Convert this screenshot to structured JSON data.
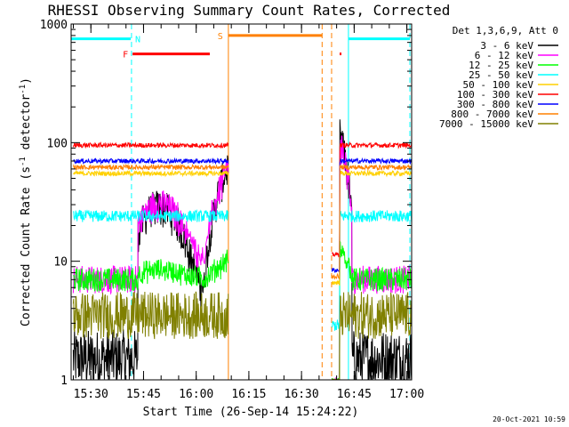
{
  "chart_data": {
    "type": "line",
    "title": "RHESSI Observing Summary Count Rates, Corrected",
    "xlabel": "Start Time (26-Sep-14 15:24:22)",
    "ylabel": "Corrected Count Rate (s",
    "ylabel_sup": "-1",
    "ylabel_tail": " detector",
    "ylabel_end": ")",
    "y_scale": "log",
    "ylim": [
      1,
      1000
    ],
    "xlim_minutes": [
      0,
      97
    ],
    "x_start": "15:24:22",
    "x_ticks": [
      {
        "label": "15:30",
        "min": 5.63
      },
      {
        "label": "15:45",
        "min": 20.63
      },
      {
        "label": "16:00",
        "min": 35.63
      },
      {
        "label": "16:15",
        "min": 50.63
      },
      {
        "label": "16:30",
        "min": 65.63
      },
      {
        "label": "16:45",
        "min": 80.63
      },
      {
        "label": "17:00",
        "min": 95.63
      }
    ],
    "y_tick_labels": [
      {
        "label": "1",
        "value": 1
      },
      {
        "label": "10",
        "value": 10
      },
      {
        "label": "100",
        "value": 100
      },
      {
        "label": "1000",
        "value": 1000
      }
    ],
    "legend_title": "Det 1,3,6,9, Att 0",
    "legend_placement": "right-outside",
    "series": [
      {
        "name": "3 - 6 keV",
        "color": "#000000",
        "level": 1.5,
        "noise": 0.25,
        "flare": 130
      },
      {
        "name": "6 - 12 keV",
        "color": "#ff00ff",
        "level": 7,
        "noise": 0.12,
        "flare": 110
      },
      {
        "name": "12 - 25 keV",
        "color": "#00ff00",
        "level": 7,
        "noise": 0.1,
        "flare": 12
      },
      {
        "name": "25 - 50 keV",
        "color": "#00ffff",
        "level": 24,
        "noise": 0.05,
        "flare": 0
      },
      {
        "name": "50 - 100 keV",
        "color": "#ffd000",
        "level": 55,
        "noise": 0.02,
        "flare": 0
      },
      {
        "name": "100 - 300 keV",
        "color": "#ff0000",
        "level": 95,
        "noise": 0.02,
        "flare": 0
      },
      {
        "name": "300 - 800 keV",
        "color": "#0000ff",
        "level": 70,
        "noise": 0.02,
        "flare": 0
      },
      {
        "name": "800 - 7000 keV",
        "color": "#ff8000",
        "level": 62,
        "noise": 0.02,
        "flare": 0
      },
      {
        "name": "7000 - 15000 keV",
        "color": "#808000",
        "level": 3.5,
        "noise": 0.2,
        "flare": 0
      }
    ],
    "gaps_minutes": [
      [
        0,
        0.5
      ],
      [
        44.8,
        74.2
      ]
    ],
    "att_drop_minutes": [
      [
        74.2,
        76.5
      ]
    ],
    "flags": [
      {
        "label": "N",
        "color": "#00ffff",
        "value": 750,
        "bars": [
          [
            0,
            17
          ],
          [
            79,
            96.5
          ]
        ],
        "label_at": 19
      },
      {
        "label": "F",
        "color": "#ff0000",
        "value": 560,
        "bars": [
          [
            17.5,
            39.5
          ],
          [
            76.5,
            77
          ]
        ],
        "label_at": 15.5
      },
      {
        "label": "S",
        "color": "#ff8000",
        "value": 800,
        "bars": [
          [
            44.8,
            71.5
          ]
        ],
        "label_at": 42.5
      }
    ],
    "vertical_lines": [
      {
        "min": 0,
        "color": "#00ffff",
        "style": "solid"
      },
      {
        "min": 17.2,
        "color": "#00ffff",
        "style": "dashed"
      },
      {
        "min": 44.8,
        "color": "#ff8000",
        "style": "solid"
      },
      {
        "min": 71.5,
        "color": "#ff8000",
        "style": "dashed"
      },
      {
        "min": 74.2,
        "color": "#ff8000",
        "style": "dashed"
      },
      {
        "min": 79.0,
        "color": "#00ffff",
        "style": "solid"
      },
      {
        "min": 96.5,
        "color": "#00ffff",
        "style": "dashed"
      }
    ]
  },
  "footer": {
    "timestamp": "20-Oct-2021 10:59"
  }
}
